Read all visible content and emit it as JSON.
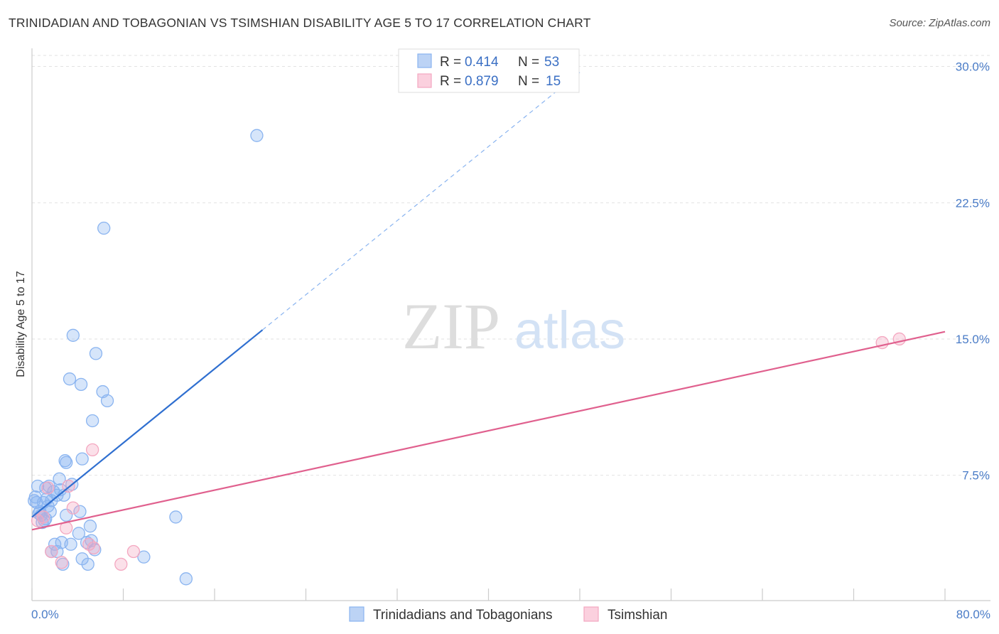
{
  "title": "TRINIDADIAN AND TOBAGONIAN VS TSIMSHIAN DISABILITY AGE 5 TO 17 CORRELATION CHART",
  "source": "Source: ZipAtlas.com",
  "watermark": {
    "zip": "ZIP",
    "atlas": "atlas"
  },
  "stats_legend": [
    {
      "r_label": "R = ",
      "r_value": "0.414",
      "n_label": "N = ",
      "n_value": "53",
      "color": "#8ab4f0"
    },
    {
      "r_label": "R = ",
      "r_value": "0.879",
      "n_label": "N = ",
      "n_value": "15",
      "color": "#f4a7c0"
    }
  ],
  "chart_data": {
    "type": "scatter",
    "title": "TRINIDADIAN AND TOBAGONIAN VS TSIMSHIAN DISABILITY AGE 5 TO 17 CORRELATION CHART",
    "xlabel": "",
    "ylabel": "Disability Age 5 to 17",
    "xlim": [
      0,
      80
    ],
    "ylim": [
      0.6,
      31.0
    ],
    "x_tick_labels": [
      "0.0%",
      "80.0%"
    ],
    "y_ticks": [
      7.5,
      15.0,
      22.5,
      30.0
    ],
    "y_tick_labels": [
      "7.5%",
      "15.0%",
      "22.5%",
      "30.0%"
    ],
    "grid": true,
    "legend_position": "top-center",
    "series": [
      {
        "name": "Trinidadians and Tobagonians",
        "color": "#8ab4f0",
        "line_color": "#2f6fd0",
        "trend": {
          "x0": 0.0,
          "y0": 5.2,
          "x1": 20.2,
          "y1": 15.5,
          "dashed_to_x": 48.0
        },
        "points": [
          [
            19.7,
            26.2
          ],
          [
            6.3,
            21.1
          ],
          [
            3.6,
            15.2
          ],
          [
            5.6,
            14.2
          ],
          [
            3.3,
            12.8
          ],
          [
            4.3,
            12.5
          ],
          [
            6.2,
            12.1
          ],
          [
            6.6,
            11.6
          ],
          [
            5.3,
            10.5
          ],
          [
            2.9,
            8.3
          ],
          [
            3.0,
            8.2
          ],
          [
            4.4,
            8.4
          ],
          [
            2.4,
            7.3
          ],
          [
            0.5,
            6.9
          ],
          [
            1.2,
            6.8
          ],
          [
            1.5,
            6.9
          ],
          [
            1.9,
            6.6
          ],
          [
            2.5,
            6.7
          ],
          [
            2.8,
            6.4
          ],
          [
            0.3,
            6.3
          ],
          [
            1.3,
            6.2
          ],
          [
            0.4,
            6.0
          ],
          [
            1.0,
            6.0
          ],
          [
            1.7,
            6.1
          ],
          [
            2.2,
            6.4
          ],
          [
            1.4,
            5.8
          ],
          [
            0.7,
            5.5
          ],
          [
            1.6,
            5.5
          ],
          [
            0.8,
            5.3
          ],
          [
            1.1,
            5.0
          ],
          [
            0.9,
            4.9
          ],
          [
            3.0,
            5.3
          ],
          [
            4.2,
            5.5
          ],
          [
            5.1,
            4.7
          ],
          [
            12.6,
            5.2
          ],
          [
            4.1,
            4.3
          ],
          [
            2.0,
            3.7
          ],
          [
            2.6,
            3.8
          ],
          [
            3.4,
            3.7
          ],
          [
            4.8,
            3.8
          ],
          [
            5.2,
            3.9
          ],
          [
            5.5,
            3.4
          ],
          [
            2.2,
            3.3
          ],
          [
            1.7,
            3.3
          ],
          [
            4.4,
            2.9
          ],
          [
            2.7,
            2.6
          ],
          [
            4.9,
            2.6
          ],
          [
            9.8,
            3.0
          ],
          [
            13.5,
            1.8
          ],
          [
            0.6,
            5.4
          ],
          [
            1.2,
            5.1
          ],
          [
            0.2,
            6.1
          ],
          [
            3.5,
            7.0
          ]
        ]
      },
      {
        "name": "Tsimshian",
        "color": "#f4a7c0",
        "line_color": "#e0608e",
        "trend": {
          "x0": 0.0,
          "y0": 4.5,
          "x1": 80.0,
          "y1": 15.4
        },
        "points": [
          [
            76.0,
            15.0
          ],
          [
            74.5,
            14.8
          ],
          [
            5.3,
            8.9
          ],
          [
            3.2,
            6.9
          ],
          [
            1.4,
            6.8
          ],
          [
            3.6,
            5.7
          ],
          [
            0.5,
            5.0
          ],
          [
            3.0,
            4.6
          ],
          [
            5.0,
            3.7
          ],
          [
            1.7,
            3.3
          ],
          [
            8.9,
            3.3
          ],
          [
            2.6,
            2.7
          ],
          [
            7.8,
            2.6
          ],
          [
            1.0,
            5.2
          ],
          [
            5.4,
            3.5
          ]
        ]
      }
    ]
  }
}
